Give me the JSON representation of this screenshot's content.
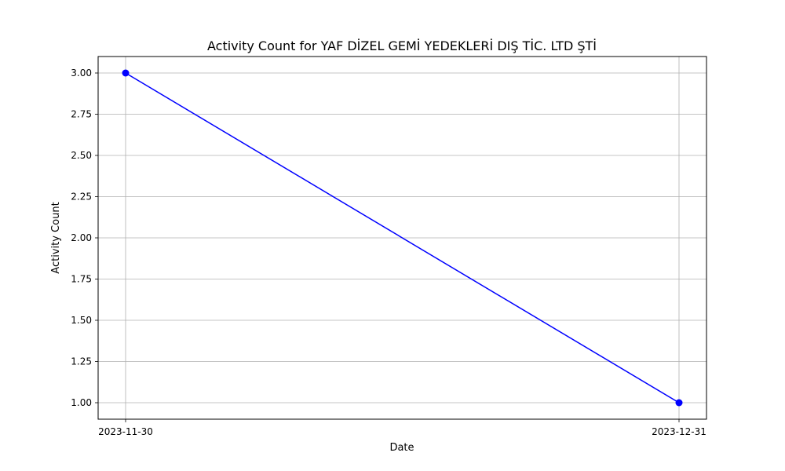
{
  "chart_data": {
    "type": "line",
    "title": "Activity Count for YAF DİZEL GEMİ YEDEKLERİ DIŞ TİC. LTD ŞTİ",
    "xlabel": "Date",
    "ylabel": "Activity Count",
    "x": [
      "2023-11-30",
      "2023-12-31"
    ],
    "series": [
      {
        "values": [
          3.0,
          1.0
        ],
        "color": "#0000ff",
        "marker": "circle"
      }
    ],
    "x_ticks": [
      "2023-11-30",
      "2023-12-31"
    ],
    "y_ticks": [
      "1.00",
      "1.25",
      "1.50",
      "1.75",
      "2.00",
      "2.25",
      "2.50",
      "2.75",
      "3.00"
    ],
    "ylim": [
      0.9,
      3.1
    ],
    "grid": true,
    "legend": "none"
  }
}
